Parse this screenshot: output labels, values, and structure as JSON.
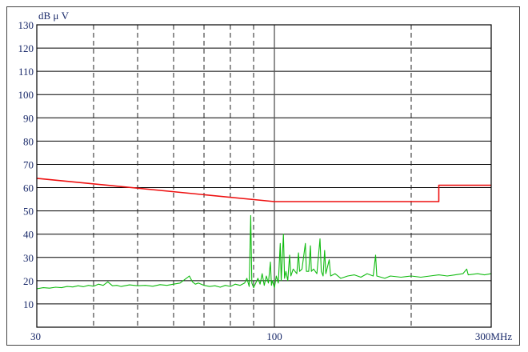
{
  "chart_data": {
    "type": "line",
    "ylabel": "dB μ V",
    "ylim": [
      0,
      130
    ],
    "yticks": [
      10,
      20,
      30,
      40,
      50,
      60,
      70,
      80,
      90,
      100,
      110,
      120,
      130
    ],
    "xscale": "log",
    "xlim": [
      30,
      300
    ],
    "xtick_labels": [
      {
        "value": 30,
        "label": "30"
      },
      {
        "value": 100,
        "label": "100"
      },
      {
        "value": 300,
        "label": "300MHz"
      }
    ],
    "x_dashed_gridlines": [
      40,
      50,
      60,
      70,
      80,
      90,
      200
    ],
    "x_solid_gridlines": [
      100
    ],
    "grid": true,
    "series": [
      {
        "color": "#ee1111",
        "points": [
          [
            30,
            64
          ],
          [
            100,
            54
          ],
          [
            230,
            54
          ],
          [
            230,
            61
          ],
          [
            300,
            61
          ]
        ]
      },
      {
        "color": "#11bb11",
        "points": [
          [
            30,
            16.5
          ],
          [
            31,
            17
          ],
          [
            32,
            16.8
          ],
          [
            33,
            17.2
          ],
          [
            34,
            17
          ],
          [
            35,
            17.5
          ],
          [
            36,
            17.3
          ],
          [
            37,
            17.8
          ],
          [
            38,
            17.4
          ],
          [
            39,
            18
          ],
          [
            40,
            17.6
          ],
          [
            41,
            18.5
          ],
          [
            42,
            18
          ],
          [
            43,
            19.5
          ],
          [
            44,
            17.8
          ],
          [
            45,
            18
          ],
          [
            46,
            17.5
          ],
          [
            48,
            18.2
          ],
          [
            50,
            17.8
          ],
          [
            52,
            18
          ],
          [
            54,
            17.6
          ],
          [
            56,
            18.3
          ],
          [
            58,
            18
          ],
          [
            60,
            18.5
          ],
          [
            62,
            19
          ],
          [
            63,
            20
          ],
          [
            64,
            21
          ],
          [
            65,
            22
          ],
          [
            66,
            19.5
          ],
          [
            67,
            18.5
          ],
          [
            68,
            19
          ],
          [
            70,
            18
          ],
          [
            72,
            17.5
          ],
          [
            74,
            17.8
          ],
          [
            76,
            17.2
          ],
          [
            78,
            18
          ],
          [
            80,
            17.5
          ],
          [
            82,
            18.5
          ],
          [
            84,
            18
          ],
          [
            86,
            19
          ],
          [
            87,
            21
          ],
          [
            88,
            17.5
          ],
          [
            88.7,
            48
          ],
          [
            89.2,
            19
          ],
          [
            90,
            17
          ],
          [
            92,
            21
          ],
          [
            93,
            18.5
          ],
          [
            94,
            23
          ],
          [
            95,
            18
          ],
          [
            96,
            22
          ],
          [
            97,
            19
          ],
          [
            98,
            28
          ],
          [
            98.5,
            18
          ],
          [
            99,
            20
          ],
          [
            100,
            17
          ],
          [
            101,
            22
          ],
          [
            102,
            19
          ],
          [
            103,
            36
          ],
          [
            103.5,
            20
          ],
          [
            104.7,
            40
          ],
          [
            105.3,
            21
          ],
          [
            106,
            24
          ],
          [
            107,
            20
          ],
          [
            108,
            31
          ],
          [
            108.7,
            22
          ],
          [
            110,
            25
          ],
          [
            112,
            23
          ],
          [
            113,
            32
          ],
          [
            113.6,
            24
          ],
          [
            115,
            25
          ],
          [
            117,
            36
          ],
          [
            117.6,
            24
          ],
          [
            119,
            24
          ],
          [
            120,
            35
          ],
          [
            120.6,
            24
          ],
          [
            122,
            25
          ],
          [
            124,
            23
          ],
          [
            126,
            38
          ],
          [
            126.8,
            24
          ],
          [
            128,
            22
          ],
          [
            129,
            33
          ],
          [
            129.8,
            23
          ],
          [
            132,
            29
          ],
          [
            133,
            22
          ],
          [
            136,
            23
          ],
          [
            140,
            21
          ],
          [
            145,
            22
          ],
          [
            150,
            22.5
          ],
          [
            155,
            21.5
          ],
          [
            160,
            23
          ],
          [
            165,
            22
          ],
          [
            167,
            31
          ],
          [
            168,
            22
          ],
          [
            175,
            21
          ],
          [
            180,
            22
          ],
          [
            190,
            21.5
          ],
          [
            200,
            22
          ],
          [
            210,
            21.5
          ],
          [
            220,
            22
          ],
          [
            230,
            22.5
          ],
          [
            240,
            22
          ],
          [
            250,
            22.5
          ],
          [
            260,
            23
          ],
          [
            265,
            25
          ],
          [
            267,
            22.5
          ],
          [
            280,
            23
          ],
          [
            290,
            22.5
          ],
          [
            300,
            23
          ]
        ]
      }
    ]
  }
}
